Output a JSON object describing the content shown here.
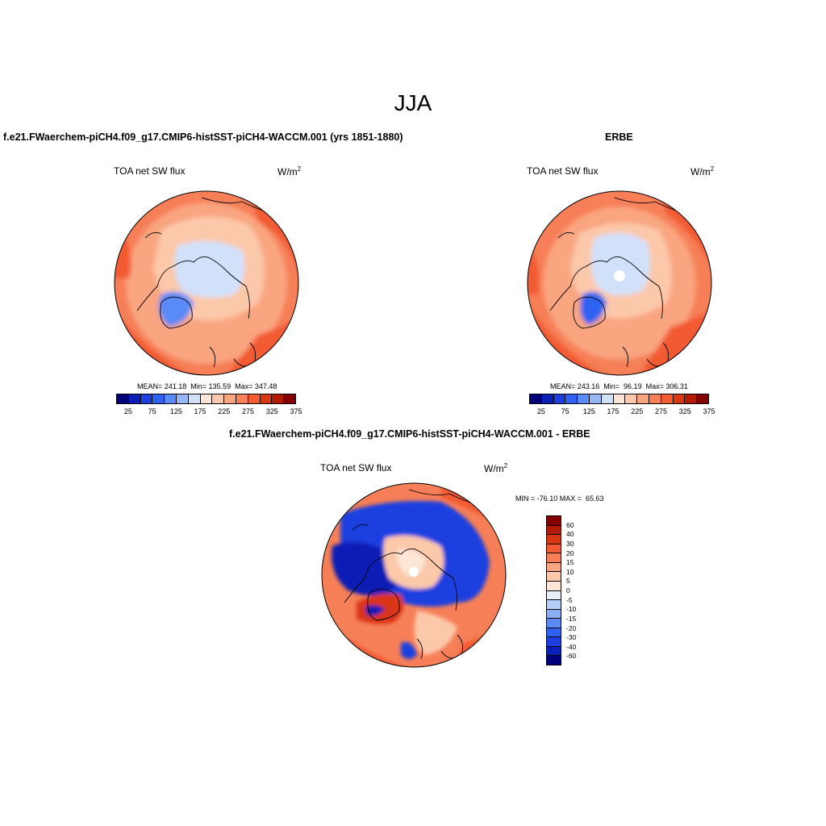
{
  "main_title": "JJA",
  "panels": {
    "model": {
      "title": "f.e21.FWaerchem-piCH4.f09_g17.CMIP6-histSST-piCH4-WACCM.001 (yrs 1851-1880)",
      "variable": "TOA net SW flux",
      "units_base": "W/m",
      "units_exp": "2",
      "stats": "MEAN= 241.18  Min= 135.59  Max= 347.48",
      "colorbar_labels": [
        "25",
        "75",
        "125",
        "175",
        "225",
        "275",
        "325",
        "375"
      ]
    },
    "obs": {
      "title": "ERBE",
      "variable": "TOA net SW flux",
      "units_base": "W/m",
      "units_exp": "2",
      "stats": "MEAN= 243.16  Min=  96.19  Max= 306.31",
      "colorbar_labels": [
        "25",
        "75",
        "125",
        "175",
        "225",
        "275",
        "325",
        "375"
      ]
    },
    "diff": {
      "title": "f.e21.FWaerchem-piCH4.f09_g17.CMIP6-histSST-piCH4-WACCM.001 - ERBE",
      "variable": "TOA net SW flux",
      "units_base": "W/m",
      "units_exp": "2",
      "stats": "MIN = -76.10 MAX =  65.63",
      "colorbar_labels": [
        "60",
        "40",
        "30",
        "20",
        "15",
        "10",
        "5",
        "0",
        "-5",
        "-10",
        "-15",
        "-20",
        "-30",
        "-40",
        "-60"
      ]
    }
  },
  "colors": {
    "abs_scale": [
      "#00007a",
      "#0a1fb5",
      "#1d3fe0",
      "#2f62f0",
      "#5a8af5",
      "#96b6f5",
      "#d2e1fa",
      "#fde6d5",
      "#fcc8aa",
      "#f9a580",
      "#f67f57",
      "#f25a31",
      "#d93612",
      "#b21c05",
      "#850000"
    ],
    "diff_scale": [
      "#850000",
      "#b21c05",
      "#d93612",
      "#f25a31",
      "#f67f57",
      "#f9a580",
      "#fcc8aa",
      "#fde6d5",
      "#e8f0fb",
      "#b6cdf5",
      "#8aaef2",
      "#5a8af5",
      "#2f62f0",
      "#1d3fe0",
      "#0a1fb5",
      "#00007a"
    ]
  }
}
